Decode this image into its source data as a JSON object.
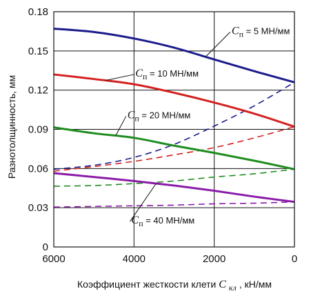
{
  "chart_data": {
    "type": "line",
    "xlabel": "Коэффициент жесткости клети",
    "xlabel_symbol": "C",
    "xlabel_subscript": "кл",
    "xlabel_unit": ", кН/мм",
    "ylabel": "Разнотолщинность, мм",
    "xlim": [
      6000,
      0
    ],
    "ylim": [
      0,
      0.18
    ],
    "x_reversed": true,
    "x_ticks": [
      6000,
      4000,
      2000,
      0
    ],
    "y_ticks": [
      0,
      0.03,
      0.06,
      0.09,
      0.12,
      0.15,
      0.18
    ],
    "x_tick_labels": [
      "6000",
      "4000",
      "2000",
      "0"
    ],
    "y_tick_labels": [
      "0",
      "0.03",
      "0.06",
      "0.09",
      "0.12",
      "0.15",
      "0.18"
    ],
    "grid": true,
    "series": [
      {
        "label_symbol": "C",
        "label_subscript": "п",
        "label_value": " = 5 МН/мм",
        "color": "#1a1a8c",
        "style": "solid",
        "points": [
          [
            6000,
            0.167
          ],
          [
            5000,
            0.1645
          ],
          [
            4000,
            0.1595
          ],
          [
            3000,
            0.1525
          ],
          [
            2000,
            0.1435
          ],
          [
            1000,
            0.1345
          ],
          [
            0,
            0.126
          ]
        ]
      },
      {
        "color": "#1a1a8c",
        "style": "dashed",
        "points": [
          [
            6000,
            0.0595
          ],
          [
            5000,
            0.0625
          ],
          [
            4000,
            0.0685
          ],
          [
            3000,
            0.0785
          ],
          [
            2000,
            0.0925
          ],
          [
            1000,
            0.108
          ],
          [
            0,
            0.126
          ]
        ]
      },
      {
        "label_symbol": "C",
        "label_subscript": "п",
        "label_value": " = 10 МН/мм",
        "color": "#d42020",
        "style": "solid",
        "points": [
          [
            6000,
            0.132
          ],
          [
            5000,
            0.1285
          ],
          [
            4000,
            0.1245
          ],
          [
            3000,
            0.118
          ],
          [
            2000,
            0.1105
          ],
          [
            1000,
            0.102
          ],
          [
            0,
            0.092
          ]
        ]
      },
      {
        "color": "#d42020",
        "style": "dashed",
        "points": [
          [
            6000,
            0.058
          ],
          [
            5000,
            0.0615
          ],
          [
            4000,
            0.0655
          ],
          [
            3000,
            0.0705
          ],
          [
            2000,
            0.076
          ],
          [
            1000,
            0.0835
          ],
          [
            0,
            0.092
          ]
        ]
      },
      {
        "label_symbol": "C",
        "label_subscript": "п",
        "label_value": " = 20 МН/мм",
        "color": "#1e8c1e",
        "style": "solid",
        "points": [
          [
            6000,
            0.0915
          ],
          [
            5000,
            0.087
          ],
          [
            4000,
            0.0835
          ],
          [
            3000,
            0.0775
          ],
          [
            2000,
            0.072
          ],
          [
            1000,
            0.066
          ],
          [
            0,
            0.0595
          ]
        ]
      },
      {
        "color": "#1e8c1e",
        "style": "dashed",
        "points": [
          [
            6000,
            0.0465
          ],
          [
            5000,
            0.047
          ],
          [
            4000,
            0.0485
          ],
          [
            3000,
            0.0505
          ],
          [
            2000,
            0.0535
          ],
          [
            1000,
            0.056
          ],
          [
            0,
            0.0595
          ]
        ]
      },
      {
        "label_symbol": "C",
        "label_subscript": "п",
        "label_value": " = 40 МН/мм",
        "color": "#8b1aa8",
        "style": "solid",
        "points": [
          [
            6000,
            0.0565
          ],
          [
            5000,
            0.0535
          ],
          [
            4000,
            0.0505
          ],
          [
            3000,
            0.047
          ],
          [
            2000,
            0.043
          ],
          [
            1000,
            0.0385
          ],
          [
            0,
            0.0345
          ]
        ]
      },
      {
        "color": "#8b1aa8",
        "style": "dashed",
        "points": [
          [
            6000,
            0.0305
          ],
          [
            5000,
            0.031
          ],
          [
            4000,
            0.0315
          ],
          [
            3000,
            0.032
          ],
          [
            2000,
            0.033
          ],
          [
            1000,
            0.0335
          ],
          [
            0,
            0.0345
          ]
        ]
      }
    ],
    "annotations": [
      {
        "series": 0,
        "symbol": "C",
        "subscript": "п",
        "text": " = 5 МН/мм",
        "anchor_x": 2200,
        "anchor_y": 0.146,
        "label_x": 1600,
        "label_y": 0.1645
      },
      {
        "series": 2,
        "symbol": "C",
        "subscript": "п",
        "text": " = 10 МН/мм",
        "anchor_x": 4700,
        "anchor_y": 0.1275,
        "label_x": 4000,
        "label_y": 0.132
      },
      {
        "series": 4,
        "symbol": "C",
        "subscript": "п",
        "text": " = 20 МН/мм",
        "anchor_x": 4450,
        "anchor_y": 0.0855,
        "label_x": 4200,
        "label_y": 0.1
      },
      {
        "series": 6,
        "symbol": "C",
        "subscript": "п",
        "text": " = 40 МН/мм",
        "anchor_x": 3450,
        "anchor_y": 0.0485,
        "label_x": 4100,
        "label_y": 0.0195
      }
    ]
  }
}
